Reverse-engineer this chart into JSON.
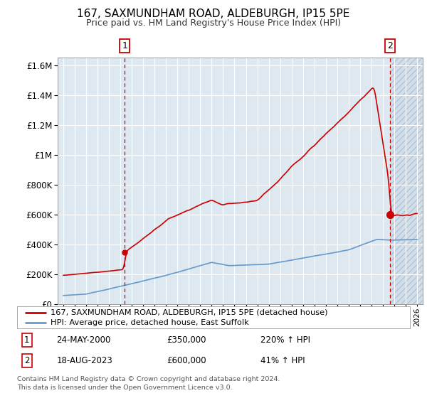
{
  "title": "167, SAXMUNDHAM ROAD, ALDEBURGH, IP15 5PE",
  "subtitle": "Price paid vs. HM Land Registry's House Price Index (HPI)",
  "legend_line1": "167, SAXMUNDHAM ROAD, ALDEBURGH, IP15 5PE (detached house)",
  "legend_line2": "HPI: Average price, detached house, East Suffolk",
  "transaction1": {
    "label": "1",
    "date": "24-MAY-2000",
    "price": 350000,
    "hpi_pct": "220% ↑ HPI",
    "x": 2000.39
  },
  "transaction2": {
    "label": "2",
    "date": "18-AUG-2023",
    "price": 600000,
    "hpi_pct": "41% ↑ HPI",
    "x": 2023.63
  },
  "red_color": "#cc0000",
  "blue_color": "#6699cc",
  "background_color": "#dde8f0",
  "grid_color": "#ffffff",
  "footer": "Contains HM Land Registry data © Crown copyright and database right 2024.\nThis data is licensed under the Open Government Licence v3.0.",
  "ylim": [
    0,
    1650000
  ],
  "xlim": [
    1994.5,
    2026.5
  ],
  "yticks": [
    0,
    200000,
    400000,
    600000,
    800000,
    1000000,
    1200000,
    1400000,
    1600000
  ]
}
